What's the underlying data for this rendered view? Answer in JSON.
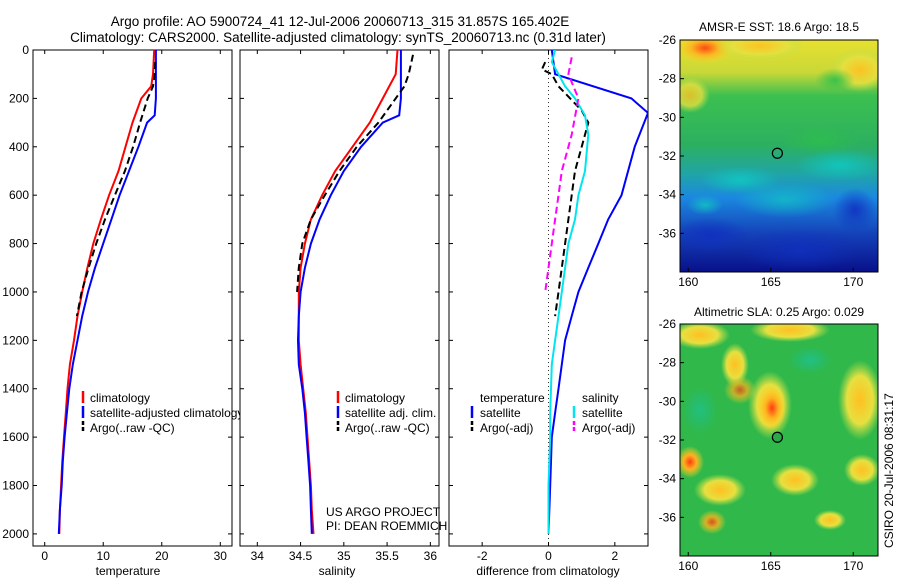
{
  "title_lines": [
    "Argo profile: AO 5900724_41 12-Jul-2006 20060713_315 31.857S 165.402E",
    "Climatology: CARS2000. Satellite-adjusted climatology: synTS_20060713.nc (0.31d later)"
  ],
  "footer": {
    "project": "US ARGO PROJECT",
    "pi": "PI: DEAN ROEMMICH"
  },
  "side_stamp": "CSIRO 20-Jul-2006 08:31:17",
  "colors": {
    "climatology": "#ff0000",
    "satellite": "#0000ff",
    "argo": "#000000",
    "sat_salinity": "#00e5ee",
    "argo_salinity": "#ff00ff"
  },
  "chart_data": [
    {
      "type": "line",
      "panel": "temperature",
      "xlabel": "temperature",
      "ylabel": "",
      "xlim": [
        -2,
        32
      ],
      "ylim": [
        2050,
        0
      ],
      "xticks": [
        0,
        10,
        20,
        30
      ],
      "xticklabels": [
        "0",
        "10",
        "20",
        "30"
      ],
      "yticks": [
        0,
        200,
        400,
        600,
        800,
        1000,
        1200,
        1400,
        1600,
        1800,
        2000
      ],
      "yticklabels": [
        "0",
        "200",
        "400",
        "600",
        "800",
        "1000",
        "1200",
        "1400",
        "1600",
        "1800",
        "2000"
      ],
      "legend": [
        "climatology",
        "satellite-adjusted climatology",
        "Argo(..raw -QC)"
      ],
      "legend_loc": "lower-right",
      "series": [
        {
          "name": "climatology",
          "color": "#ff0000",
          "dash": "",
          "points": [
            [
              18.7,
              0
            ],
            [
              18.6,
              50
            ],
            [
              18.5,
              100
            ],
            [
              18.2,
              150
            ],
            [
              16.5,
              200
            ],
            [
              15.0,
              300
            ],
            [
              13.8,
              400
            ],
            [
              12.6,
              500
            ],
            [
              11.0,
              600
            ],
            [
              9.6,
              700
            ],
            [
              8.3,
              800
            ],
            [
              7.3,
              900
            ],
            [
              6.4,
              1000
            ],
            [
              5.6,
              1100
            ],
            [
              5.0,
              1200
            ],
            [
              4.3,
              1300
            ],
            [
              3.9,
              1400
            ],
            [
              3.6,
              1500
            ],
            [
              3.3,
              1600
            ],
            [
              3.0,
              1700
            ],
            [
              2.8,
              1800
            ],
            [
              2.6,
              1900
            ],
            [
              2.5,
              2000
            ]
          ]
        },
        {
          "name": "satellite-adjusted climatology",
          "color": "#0000ff",
          "dash": "",
          "points": [
            [
              19.0,
              0
            ],
            [
              19.0,
              100
            ],
            [
              19.0,
              200
            ],
            [
              18.8,
              270
            ],
            [
              17.5,
              300
            ],
            [
              16.0,
              400
            ],
            [
              14.4,
              500
            ],
            [
              12.8,
              600
            ],
            [
              11.4,
              700
            ],
            [
              10.0,
              800
            ],
            [
              8.6,
              900
            ],
            [
              7.4,
              1000
            ],
            [
              6.4,
              1100
            ],
            [
              5.6,
              1200
            ],
            [
              4.8,
              1300
            ],
            [
              4.2,
              1400
            ],
            [
              3.8,
              1500
            ],
            [
              3.4,
              1600
            ],
            [
              3.1,
              1700
            ],
            [
              2.9,
              1800
            ],
            [
              2.6,
              1900
            ],
            [
              2.4,
              2000
            ]
          ]
        },
        {
          "name": "Argo(..raw -QC)",
          "color": "#000000",
          "dash": "7,4",
          "points": [
            [
              18.9,
              50
            ],
            [
              18.8,
              100
            ],
            [
              18.5,
              150
            ],
            [
              17.6,
              200
            ],
            [
              16.3,
              300
            ],
            [
              15.1,
              400
            ],
            [
              13.7,
              500
            ],
            [
              12.0,
              600
            ],
            [
              10.3,
              700
            ],
            [
              8.8,
              800
            ],
            [
              7.5,
              900
            ],
            [
              6.3,
              1000
            ],
            [
              5.5,
              1100
            ]
          ]
        }
      ]
    },
    {
      "type": "line",
      "panel": "salinity",
      "xlabel": "salinity",
      "ylabel": "",
      "xlim": [
        33.8,
        36.1
      ],
      "ylim": [
        2050,
        0
      ],
      "xticks": [
        34,
        34.5,
        35,
        35.5,
        36
      ],
      "xticklabels": [
        "34",
        "34.5",
        "35",
        "35.5",
        "36"
      ],
      "legend": [
        "climatology",
        "satellite adj. clim.",
        "Argo(..raw -QC)"
      ],
      "legend_loc": "lower-right",
      "series": [
        {
          "name": "climatology",
          "color": "#ff0000",
          "dash": "",
          "points": [
            [
              35.62,
              0
            ],
            [
              35.6,
              100
            ],
            [
              35.45,
              200
            ],
            [
              35.3,
              300
            ],
            [
              35.1,
              400
            ],
            [
              34.9,
              500
            ],
            [
              34.75,
              600
            ],
            [
              34.62,
              700
            ],
            [
              34.55,
              800
            ],
            [
              34.5,
              900
            ],
            [
              34.48,
              1000
            ],
            [
              34.48,
              1100
            ],
            [
              34.48,
              1200
            ],
            [
              34.5,
              1300
            ],
            [
              34.53,
              1400
            ],
            [
              34.56,
              1500
            ],
            [
              34.58,
              1600
            ],
            [
              34.6,
              1700
            ],
            [
              34.62,
              1800
            ],
            [
              34.63,
              1900
            ],
            [
              34.65,
              2000
            ]
          ]
        },
        {
          "name": "satellite adj. clim.",
          "color": "#0000ff",
          "dash": "",
          "points": [
            [
              35.66,
              0
            ],
            [
              35.66,
              100
            ],
            [
              35.66,
              200
            ],
            [
              35.64,
              270
            ],
            [
              35.45,
              300
            ],
            [
              35.2,
              400
            ],
            [
              35.0,
              500
            ],
            [
              34.85,
              600
            ],
            [
              34.72,
              700
            ],
            [
              34.62,
              800
            ],
            [
              34.55,
              900
            ],
            [
              34.5,
              1000
            ],
            [
              34.48,
              1100
            ],
            [
              34.47,
              1200
            ],
            [
              34.48,
              1300
            ],
            [
              34.52,
              1400
            ],
            [
              34.55,
              1500
            ],
            [
              34.57,
              1600
            ],
            [
              34.59,
              1700
            ],
            [
              34.61,
              1800
            ],
            [
              34.62,
              1900
            ],
            [
              34.63,
              2000
            ]
          ]
        },
        {
          "name": "Argo(..raw -QC)",
          "color": "#000000",
          "dash": "7,4",
          "points": [
            [
              35.8,
              20
            ],
            [
              35.75,
              100
            ],
            [
              35.7,
              150
            ],
            [
              35.6,
              200
            ],
            [
              35.4,
              300
            ],
            [
              35.15,
              400
            ],
            [
              34.95,
              500
            ],
            [
              34.78,
              600
            ],
            [
              34.62,
              700
            ],
            [
              34.52,
              800
            ],
            [
              34.48,
              900
            ],
            [
              34.46,
              1000
            ]
          ]
        }
      ],
      "text_annotations": [
        "US ARGO PROJECT",
        "PI: DEAN ROEMMICH"
      ]
    },
    {
      "type": "line",
      "panel": "difference",
      "xlabel": "difference from climatology",
      "ylabel": "",
      "xlim": [
        -3,
        3
      ],
      "ylim": [
        2050,
        0
      ],
      "xticks": [
        -2,
        0,
        2
      ],
      "xticklabels": [
        "-2",
        "0",
        "2"
      ],
      "legend_groups": [
        {
          "heading": "temperature",
          "entries": [
            "satellite",
            "Argo(-adj)"
          ]
        },
        {
          "heading": "salinity",
          "entries": [
            "satellite",
            "Argo(-adj)"
          ]
        }
      ],
      "legend_loc": "lower-center",
      "series": [
        {
          "name": "temperature satellite",
          "color": "#0000ff",
          "dash": "",
          "points": [
            [
              0.1,
              0
            ],
            [
              0.2,
              100
            ],
            [
              2.5,
              200
            ],
            [
              3.0,
              260
            ],
            [
              2.6,
              400
            ],
            [
              2.2,
              600
            ],
            [
              1.8,
              700
            ],
            [
              1.5,
              800
            ],
            [
              1.2,
              900
            ],
            [
              0.9,
              1000
            ],
            [
              0.7,
              1100
            ],
            [
              0.5,
              1200
            ],
            [
              0.4,
              1300
            ],
            [
              0.3,
              1400
            ],
            [
              0.2,
              1500
            ],
            [
              0.1,
              1600
            ],
            [
              0.05,
              1800
            ],
            [
              0.0,
              2000
            ]
          ]
        },
        {
          "name": "temperature Argo(-adj)",
          "color": "#000000",
          "dash": "7,4",
          "points": [
            [
              -0.1,
              50
            ],
            [
              -0.2,
              80
            ],
            [
              0.1,
              100
            ],
            [
              0.3,
              150
            ],
            [
              1.0,
              250
            ],
            [
              1.2,
              300
            ],
            [
              1.0,
              400
            ],
            [
              0.8,
              500
            ],
            [
              0.7,
              600
            ],
            [
              0.6,
              700
            ],
            [
              0.5,
              800
            ],
            [
              0.4,
              900
            ],
            [
              0.3,
              1000
            ],
            [
              0.2,
              1100
            ]
          ]
        },
        {
          "name": "salinity satellite",
          "color": "#00e5ee",
          "dash": "",
          "points": [
            [
              0.2,
              0
            ],
            [
              0.1,
              50
            ],
            [
              0.3,
              100
            ],
            [
              0.5,
              150
            ],
            [
              0.8,
              200
            ],
            [
              1.1,
              270
            ],
            [
              1.2,
              350
            ],
            [
              1.1,
              500
            ],
            [
              0.9,
              600
            ],
            [
              0.8,
              700
            ],
            [
              0.6,
              800
            ],
            [
              0.5,
              900
            ],
            [
              0.4,
              1000
            ],
            [
              0.3,
              1100
            ],
            [
              0.2,
              1200
            ],
            [
              0.1,
              1300
            ],
            [
              0.05,
              1500
            ],
            [
              0.05,
              1600
            ],
            [
              0.0,
              1800
            ],
            [
              0.0,
              2000
            ]
          ]
        },
        {
          "name": "salinity Argo(-adj)",
          "color": "#ff00ff",
          "dash": "7,4",
          "points": [
            [
              0.7,
              30
            ],
            [
              0.6,
              100
            ],
            [
              0.9,
              200
            ],
            [
              0.7,
              350
            ],
            [
              0.4,
              500
            ],
            [
              0.3,
              600
            ],
            [
              0.2,
              700
            ],
            [
              0.1,
              800
            ],
            [
              0.0,
              900
            ],
            [
              -0.1,
              1000
            ]
          ]
        }
      ]
    },
    {
      "type": "heatmap",
      "panel": "sst_map",
      "title": "AMSR-E SST: 18.6 Argo: 18.5",
      "xlim": [
        159.5,
        171.5
      ],
      "ylim": [
        -38,
        -26
      ],
      "xticks": [
        160,
        165,
        170
      ],
      "xticklabels": [
        "160",
        "165",
        "170"
      ],
      "yticks": [
        -26,
        -28,
        -30,
        -32,
        -34,
        -36
      ],
      "yticklabels": [
        "-26",
        "-28",
        "-30",
        "-32",
        "-34",
        "-36"
      ],
      "marker": {
        "lon": 165.402,
        "lat": -31.857,
        "style": "open-circle"
      },
      "pattern": "warm-north-cool-south"
    },
    {
      "type": "heatmap",
      "panel": "sla_map",
      "title": "Altimetric SLA: 0.25 Argo: 0.029",
      "xlim": [
        159.5,
        171.5
      ],
      "ylim": [
        -38,
        -26
      ],
      "xticks": [
        160,
        165,
        170
      ],
      "xticklabels": [
        "160",
        "165",
        "170"
      ],
      "yticks": [
        -26,
        -28,
        -30,
        -32,
        -34,
        -36
      ],
      "yticklabels": [
        "-26",
        "-28",
        "-30",
        "-32",
        "-34",
        "-36"
      ],
      "marker": {
        "lon": 165.402,
        "lat": -31.857,
        "style": "filled-circle"
      },
      "pattern": "mixed-eddies"
    }
  ]
}
